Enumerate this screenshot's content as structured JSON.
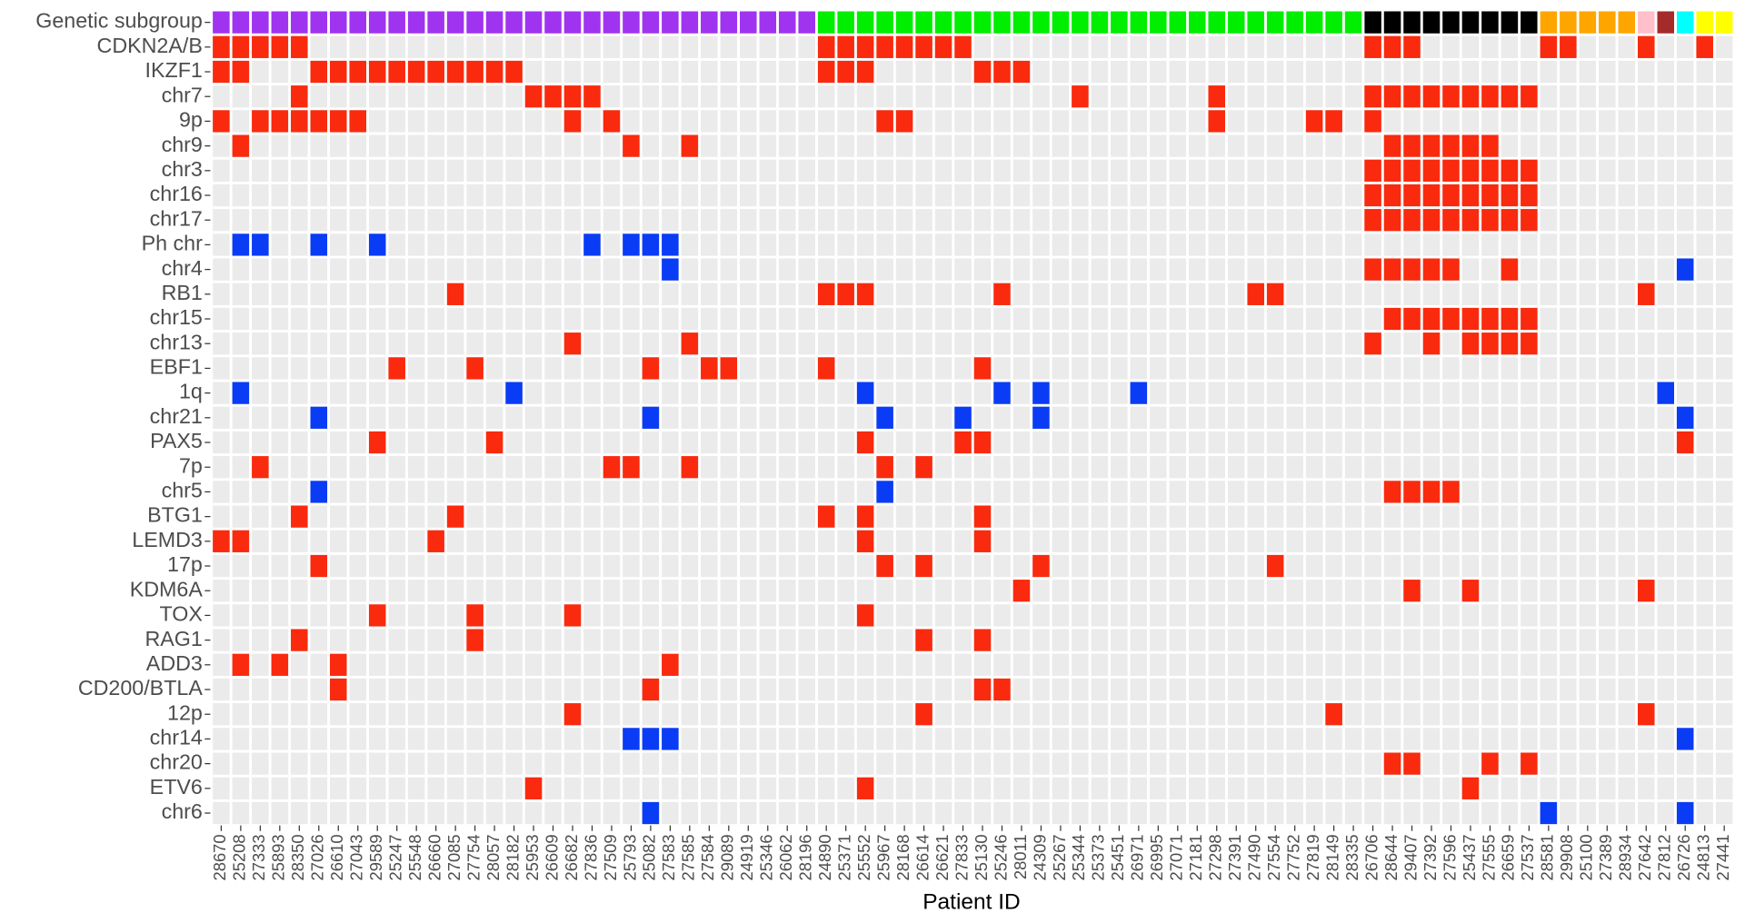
{
  "chart_data": {
    "type": "heatmap",
    "xlabel": "Patient ID",
    "row_header": "Genetic subgroup",
    "red": "#fa2a0e",
    "blue": "#0a3cf5",
    "patients": [
      "28670",
      "25208",
      "27333",
      "25893",
      "28350",
      "27026",
      "26610",
      "27043",
      "29589",
      "25247",
      "25548",
      "26660",
      "27085",
      "27754",
      "28057",
      "28182",
      "25953",
      "26609",
      "26682",
      "27836",
      "27509",
      "25793",
      "25082",
      "27583",
      "27585",
      "27584",
      "29089",
      "24919",
      "25346",
      "26062",
      "28196",
      "24890",
      "25371",
      "25552",
      "25967",
      "28168",
      "26614",
      "26621",
      "27833",
      "25130",
      "25246",
      "28011",
      "24309",
      "25267",
      "25344",
      "25373",
      "25451",
      "26971",
      "26995",
      "27071",
      "27181",
      "27298",
      "27391",
      "27490",
      "27554",
      "27752",
      "27819",
      "28149",
      "28335",
      "26706",
      "28644",
      "29407",
      "27392",
      "27596",
      "25437",
      "27555",
      "26659",
      "27537",
      "28581",
      "29908",
      "25100",
      "27389",
      "28934",
      "27642",
      "27812",
      "26726",
      "24813",
      "27441"
    ],
    "subgroups": [
      {
        "color": "#a033f0",
        "count": 31
      },
      {
        "color": "#00ee00",
        "count": 28
      },
      {
        "color": "#000000",
        "count": 9
      },
      {
        "color": "#ffa500",
        "count": 5
      },
      {
        "color": "#ffc0cb",
        "count": 1
      },
      {
        "color": "#a52a2a",
        "count": 1
      },
      {
        "color": "#00ffff",
        "count": 1
      },
      {
        "color": "#ffff00",
        "count": 2
      }
    ],
    "rows": [
      {
        "name": "CDKN2A/B",
        "red": [
          0,
          1,
          2,
          3,
          4,
          31,
          32,
          33,
          34,
          35,
          36,
          37,
          38,
          59,
          60,
          61,
          68,
          69,
          73,
          76
        ],
        "blue": []
      },
      {
        "name": "IKZF1",
        "red": [
          0,
          1,
          5,
          6,
          7,
          8,
          9,
          10,
          11,
          12,
          13,
          14,
          15,
          31,
          32,
          33,
          39,
          40,
          41
        ],
        "blue": []
      },
      {
        "name": "chr7",
        "red": [
          4,
          16,
          17,
          18,
          19,
          44,
          51,
          59,
          60,
          61,
          62,
          63,
          64,
          65,
          66,
          67
        ],
        "blue": []
      },
      {
        "name": "9p",
        "red": [
          0,
          2,
          3,
          4,
          5,
          6,
          7,
          18,
          20,
          34,
          35,
          51,
          56,
          57,
          59
        ],
        "blue": []
      },
      {
        "name": "chr9",
        "red": [
          1,
          21,
          24,
          60,
          61,
          62,
          63,
          64,
          65
        ],
        "blue": []
      },
      {
        "name": "chr3",
        "red": [
          59,
          60,
          61,
          62,
          63,
          64,
          65,
          66,
          67
        ],
        "blue": []
      },
      {
        "name": "chr16",
        "red": [
          59,
          60,
          61,
          62,
          63,
          64,
          65,
          66,
          67
        ],
        "blue": []
      },
      {
        "name": "chr17",
        "red": [
          59,
          60,
          61,
          62,
          63,
          64,
          65,
          66,
          67
        ],
        "blue": []
      },
      {
        "name": "Ph chr",
        "red": [],
        "blue": [
          1,
          2,
          5,
          8,
          19,
          21,
          22,
          23
        ]
      },
      {
        "name": "chr4",
        "red": [
          59,
          60,
          61,
          62,
          63,
          66
        ],
        "blue": [
          23,
          75
        ]
      },
      {
        "name": "RB1",
        "red": [
          12,
          31,
          32,
          33,
          40,
          53,
          54,
          73
        ],
        "blue": []
      },
      {
        "name": "chr15",
        "red": [
          60,
          61,
          62,
          63,
          64,
          65,
          66,
          67
        ],
        "blue": []
      },
      {
        "name": "chr13",
        "red": [
          18,
          24,
          59,
          62,
          64,
          65,
          66,
          67
        ],
        "blue": []
      },
      {
        "name": "EBF1",
        "red": [
          9,
          13,
          22,
          25,
          26,
          31,
          39
        ],
        "blue": []
      },
      {
        "name": "1q",
        "red": [],
        "blue": [
          1,
          15,
          33,
          40,
          42,
          47,
          74
        ]
      },
      {
        "name": "chr21",
        "red": [],
        "blue": [
          5,
          22,
          34,
          38,
          42,
          75
        ]
      },
      {
        "name": "PAX5",
        "red": [
          8,
          14,
          33,
          38,
          39,
          75
        ],
        "blue": []
      },
      {
        "name": "7p",
        "red": [
          2,
          20,
          21,
          24,
          34,
          36
        ],
        "blue": []
      },
      {
        "name": "chr5",
        "red": [
          60,
          61,
          62,
          63
        ],
        "blue": [
          5,
          34
        ]
      },
      {
        "name": "BTG1",
        "red": [
          4,
          12,
          31,
          33,
          39
        ],
        "blue": []
      },
      {
        "name": "LEMD3",
        "red": [
          0,
          1,
          11,
          33,
          39
        ],
        "blue": []
      },
      {
        "name": "17p",
        "red": [
          5,
          34,
          36,
          42,
          54
        ],
        "blue": []
      },
      {
        "name": "KDM6A",
        "red": [
          41,
          61,
          64,
          73
        ],
        "blue": []
      },
      {
        "name": "TOX",
        "red": [
          8,
          13,
          18,
          33
        ],
        "blue": []
      },
      {
        "name": "RAG1",
        "red": [
          4,
          13,
          36,
          39
        ],
        "blue": []
      },
      {
        "name": "ADD3",
        "red": [
          1,
          3,
          6,
          23
        ],
        "blue": []
      },
      {
        "name": "CD200/BTLA",
        "red": [
          6,
          22,
          39,
          40
        ],
        "blue": []
      },
      {
        "name": "12p",
        "red": [
          18,
          36,
          57,
          73
        ],
        "blue": []
      },
      {
        "name": "chr14",
        "red": [],
        "blue": [
          21,
          22,
          23,
          75
        ]
      },
      {
        "name": "chr20",
        "red": [
          60,
          61,
          65,
          67
        ],
        "blue": []
      },
      {
        "name": "ETV6",
        "red": [
          16,
          33,
          64
        ],
        "blue": []
      },
      {
        "name": "chr6",
        "red": [],
        "blue": [
          22,
          68,
          75
        ]
      }
    ]
  }
}
